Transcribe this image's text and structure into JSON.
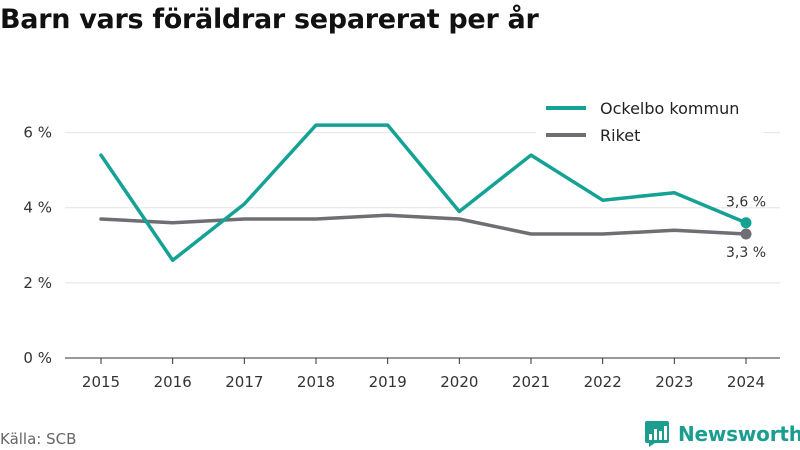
{
  "header": {
    "title": "Barn vars föräldrar separerat per år"
  },
  "footer": {
    "source": "Källa: SCB",
    "brand": "Newsworthy"
  },
  "colors": {
    "ockelbo": "#14a294",
    "riket": "#6e6e73",
    "grid": "#e4e4e4",
    "axis": "#333333"
  },
  "chart_data": {
    "type": "line",
    "title": "Barn vars föräldrar separerat per år",
    "xlabel": "",
    "ylabel": "",
    "x": [
      "2015",
      "2016",
      "2017",
      "2018",
      "2019",
      "2020",
      "2021",
      "2022",
      "2023",
      "2024"
    ],
    "ylim": [
      0,
      7
    ],
    "yticks": [
      0,
      2,
      4,
      6
    ],
    "ytick_labels": [
      "0 %",
      "2 %",
      "4 %",
      "6 %"
    ],
    "grid": "horizontal",
    "legend_position": "top-right",
    "series": [
      {
        "name": "Ockelbo kommun",
        "color": "#14a294",
        "values": [
          5.4,
          2.6,
          4.1,
          6.2,
          6.2,
          3.9,
          5.4,
          4.2,
          4.4,
          3.6
        ],
        "end_label": "3,6 %"
      },
      {
        "name": "Riket",
        "color": "#6e6e73",
        "values": [
          3.7,
          3.6,
          3.7,
          3.7,
          3.8,
          3.7,
          3.3,
          3.3,
          3.4,
          3.3
        ],
        "end_label": "3,3 %"
      }
    ]
  }
}
